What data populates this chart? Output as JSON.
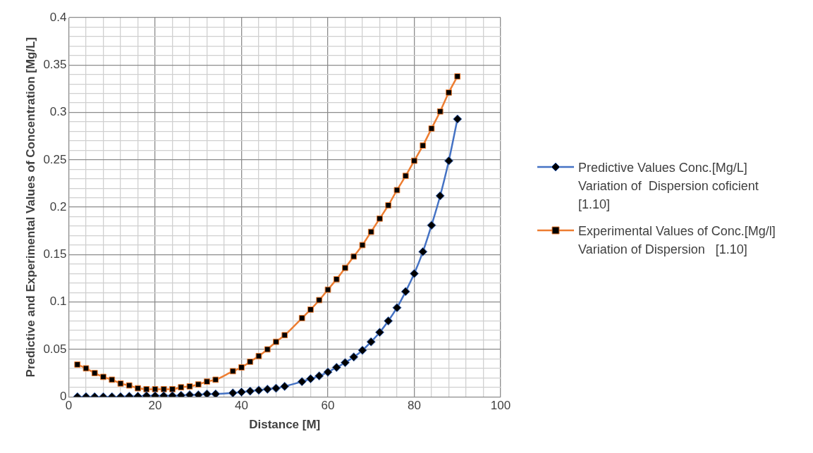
{
  "chart_data": {
    "type": "line",
    "xlabel": "Distance [M]",
    "ylabel": "Predictive and Experimental Values of Concentration [Mg/L]",
    "x": [
      2,
      4,
      6,
      8,
      10,
      12,
      14,
      16,
      18,
      20,
      22,
      24,
      26,
      28,
      30,
      32,
      34,
      38,
      40,
      42,
      44,
      46,
      48,
      50,
      54,
      56,
      58,
      60,
      62,
      64,
      66,
      68,
      70,
      72,
      74,
      76,
      78,
      80,
      82,
      84,
      86,
      88,
      90
    ],
    "series": [
      {
        "name": "Predictive Values Conc.[Mg/L] Variation of  Dispersion coficient [1.10]",
        "color": "#4472c4",
        "marker": "diamond",
        "values": [
          0,
          0,
          0,
          0,
          0,
          0,
          0.0005,
          0.0005,
          0.001,
          0.001,
          0.001,
          0.001,
          0.0015,
          0.002,
          0.002,
          0.003,
          0.003,
          0.004,
          0.005,
          0.006,
          0.007,
          0.008,
          0.009,
          0.011,
          0.016,
          0.019,
          0.022,
          0.026,
          0.031,
          0.036,
          0.042,
          0.049,
          0.058,
          0.068,
          0.08,
          0.094,
          0.111,
          0.13,
          0.153,
          0.181,
          0.212,
          0.249,
          0.293
        ]
      },
      {
        "name": "Experimental Values of Conc.[Mg/l] Variation of Dispersion   [1.10]",
        "color": "#ed7d31",
        "marker": "square",
        "values": [
          0.034,
          0.03,
          0.025,
          0.021,
          0.018,
          0.014,
          0.012,
          0.009,
          0.008,
          0.008,
          0.008,
          0.008,
          0.01,
          0.011,
          0.013,
          0.016,
          0.018,
          0.027,
          0.031,
          0.037,
          0.043,
          0.05,
          0.058,
          0.065,
          0.083,
          0.092,
          0.102,
          0.113,
          0.124,
          0.136,
          0.148,
          0.16,
          0.174,
          0.188,
          0.202,
          0.218,
          0.233,
          0.249,
          0.265,
          0.283,
          0.301,
          0.321,
          0.338
        ]
      }
    ],
    "xlim": [
      0,
      100
    ],
    "xticks": [
      0,
      {
        "value": 4,
        "label": null
      },
      {
        "value": 8,
        "label": null
      },
      {
        "value": 12,
        "label": null
      },
      {
        "value": 16,
        "label": null
      },
      20,
      {
        "value": 24,
        "label": null
      },
      {
        "value": 28,
        "label": null
      },
      {
        "value": 32,
        "label": null
      },
      {
        "value": 36,
        "label": null
      },
      40,
      {
        "value": 44,
        "label": null
      },
      {
        "value": 48,
        "label": null
      },
      {
        "value": 52,
        "label": null
      },
      {
        "value": 56,
        "label": null
      },
      60,
      {
        "value": 64,
        "label": null
      },
      {
        "value": 68,
        "label": null
      },
      {
        "value": 72,
        "label": null
      },
      {
        "value": 76,
        "label": null
      },
      80,
      {
        "value": 84,
        "label": null
      },
      {
        "value": 88,
        "label": null
      },
      {
        "value": 92,
        "label": null
      },
      {
        "value": 96,
        "label": null
      },
      100
    ],
    "ylim": [
      0,
      0.4
    ],
    "yticks": [
      0,
      {
        "value": 0.01,
        "label": null
      },
      {
        "value": 0.02,
        "label": null
      },
      {
        "value": 0.03,
        "label": null
      },
      {
        "value": 0.04,
        "label": null
      },
      0.05,
      {
        "value": 0.06,
        "label": null
      },
      {
        "value": 0.07,
        "label": null
      },
      {
        "value": 0.08,
        "label": null
      },
      {
        "value": 0.09,
        "label": null
      },
      0.1,
      {
        "value": 0.11,
        "label": null
      },
      {
        "value": 0.12,
        "label": null
      },
      {
        "value": 0.13,
        "label": null
      },
      {
        "value": 0.14,
        "label": null
      },
      0.15,
      {
        "value": 0.16,
        "label": null
      },
      {
        "value": 0.17,
        "label": null
      },
      {
        "value": 0.18,
        "label": null
      },
      {
        "value": 0.19,
        "label": null
      },
      0.2,
      {
        "value": 0.21,
        "label": null
      },
      {
        "value": 0.22,
        "label": null
      },
      {
        "value": 0.23,
        "label": null
      },
      {
        "value": 0.24,
        "label": null
      },
      0.25,
      {
        "value": 0.26,
        "label": null
      },
      {
        "value": 0.27,
        "label": null
      },
      {
        "value": 0.28,
        "label": null
      },
      {
        "value": 0.29,
        "label": null
      },
      0.3,
      {
        "value": 0.31,
        "label": null
      },
      {
        "value": 0.32,
        "label": null
      },
      {
        "value": 0.33,
        "label": null
      },
      {
        "value": 0.34,
        "label": null
      },
      0.35,
      {
        "value": 0.36,
        "label": null
      },
      {
        "value": 0.37,
        "label": null
      },
      {
        "value": 0.38,
        "label": null
      },
      {
        "value": 0.39,
        "label": null
      },
      0.4
    ],
    "grid": true,
    "legend": "right"
  }
}
